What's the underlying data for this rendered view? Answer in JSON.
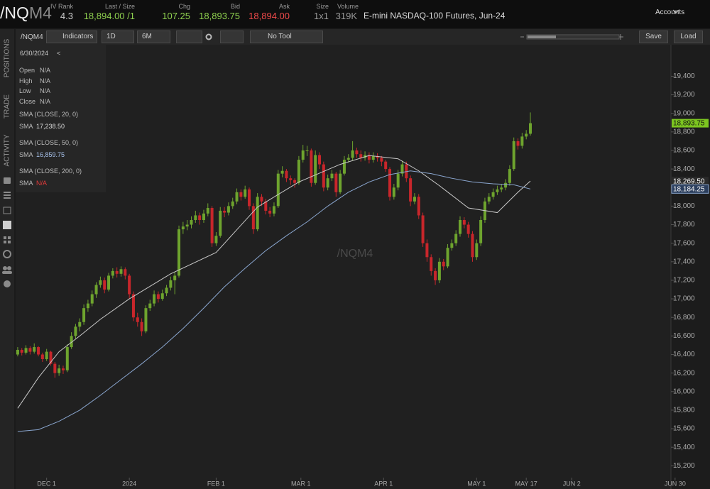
{
  "header": {
    "symbol_root": "/NQ",
    "symbol_month": "M4",
    "fields": [
      {
        "label": "IV Rank",
        "value": "4.3"
      },
      {
        "label": "Last / Size",
        "value": "18,894.00 /1"
      },
      {
        "label": "Chg",
        "value": "107.25"
      },
      {
        "label": "Bid",
        "value": "18,893.75"
      },
      {
        "label": "Ask",
        "value": "18,894.00"
      },
      {
        "label": "Size",
        "value": "1x1"
      },
      {
        "label": "Volume",
        "value": "319K"
      }
    ],
    "description": "E-mini NASDAQ-100 Futures, Jun-24",
    "accounts": "Accounts"
  },
  "toolbar": {
    "symbol": "/NQM4",
    "indicators": "Indicators",
    "interval": "1D",
    "range": "6M",
    "tool": "No Tool",
    "save": "Save",
    "load": "Load"
  },
  "side_tabs": [
    "POSITIONS",
    "TRADE",
    "ACTIVITY"
  ],
  "info_panel": {
    "date": "6/30/2024",
    "collapse": "<",
    "rows": [
      {
        "label": "Open",
        "value": "N/A"
      },
      {
        "label": "High",
        "value": "N/A"
      },
      {
        "label": "Low",
        "value": "N/A"
      },
      {
        "label": "Close",
        "value": "N/A"
      }
    ],
    "studies": [
      {
        "name": "SMA (CLOSE, 20, 0)",
        "label": "SMA",
        "value": "17,238.50"
      },
      {
        "name": "SMA (CLOSE, 50, 0)",
        "label": "SMA",
        "value": "16,859.75"
      },
      {
        "name": "SMA (CLOSE, 200, 0)",
        "label": "SMA",
        "value": "N/A"
      }
    ]
  },
  "chart_data": {
    "type": "candlestick",
    "watermark": "/NQM4",
    "up_color": "#6ea42e",
    "down_color": "#c8262b",
    "xlim": [
      -0.5,
      158
    ],
    "ylim": [
      14950,
      19740
    ],
    "yticks": [
      {
        "value": 15200,
        "label": "15,200"
      },
      {
        "value": 15400,
        "label": "15,400"
      },
      {
        "value": 15600,
        "label": "15,600"
      },
      {
        "value": 15800,
        "label": "15,800"
      },
      {
        "value": 16000,
        "label": "16,000"
      },
      {
        "value": 16200,
        "label": "16,200"
      },
      {
        "value": 16400,
        "label": "16,400"
      },
      {
        "value": 16600,
        "label": "16,600"
      },
      {
        "value": 16800,
        "label": "16,800"
      },
      {
        "value": 17000,
        "label": "17,000"
      },
      {
        "value": 17200,
        "label": "17,200"
      },
      {
        "value": 17400,
        "label": "17,400"
      },
      {
        "value": 17600,
        "label": "17,600"
      },
      {
        "value": 17800,
        "label": "17,800"
      },
      {
        "value": 18000,
        "label": "18,000"
      },
      {
        "value": 18200,
        "label": "18,200"
      },
      {
        "value": 18400,
        "label": "18,400"
      },
      {
        "value": 18600,
        "label": "18,600"
      },
      {
        "value": 18800,
        "label": "18,800"
      },
      {
        "value": 19000,
        "label": "19,000"
      },
      {
        "value": 19200,
        "label": "19,200"
      },
      {
        "value": 19400,
        "label": "19,400"
      }
    ],
    "xticks": [
      {
        "value": 7,
        "label": "DEC 1"
      },
      {
        "value": 27,
        "label": "2024"
      },
      {
        "value": 48,
        "label": "FEB 1"
      },
      {
        "value": 68.5,
        "label": "MAR 1"
      },
      {
        "value": 88.5,
        "label": "APR 1"
      },
      {
        "value": 111,
        "label": "MAY 1"
      },
      {
        "value": 123,
        "label": "MAY 17"
      },
      {
        "value": 134,
        "label": "JUN 2"
      },
      {
        "value": 159,
        "label": "JUN 30"
      }
    ],
    "x": [
      0,
      1,
      2,
      3,
      4,
      5,
      6,
      7,
      8,
      9,
      10,
      11,
      12,
      13,
      14,
      15,
      16,
      17,
      18,
      19,
      20,
      21,
      22,
      23,
      24,
      25,
      26,
      27,
      28,
      29,
      30,
      31,
      32,
      33,
      34,
      35,
      36,
      37,
      38,
      39,
      40,
      41,
      42,
      43,
      44,
      45,
      46,
      47,
      48,
      49,
      50,
      51,
      52,
      53,
      54,
      55,
      56,
      57,
      58,
      59,
      60,
      61,
      62,
      63,
      64,
      65,
      66,
      67,
      68,
      69,
      70,
      71,
      72,
      73,
      74,
      75,
      76,
      77,
      78,
      79,
      80,
      81,
      82,
      83,
      84,
      85,
      86,
      87,
      88,
      89,
      90,
      91,
      92,
      93,
      94,
      95,
      96,
      97,
      98,
      99,
      100,
      101,
      102,
      103,
      104,
      105,
      106,
      107,
      108,
      109,
      110,
      111,
      112,
      113,
      114,
      115,
      116,
      117,
      118,
      119,
      120,
      121,
      122,
      123,
      124
    ],
    "candles": [
      [
        16400,
        16480,
        16380,
        16450
      ],
      [
        16450,
        16470,
        16390,
        16420
      ],
      [
        16420,
        16500,
        16400,
        16470
      ],
      [
        16470,
        16490,
        16400,
        16430
      ],
      [
        16430,
        16520,
        16410,
        16480
      ],
      [
        16480,
        16490,
        16380,
        16400
      ],
      [
        16400,
        16420,
        16320,
        16350
      ],
      [
        16350,
        16460,
        16330,
        16430
      ],
      [
        16430,
        16440,
        16280,
        16300
      ],
      [
        16300,
        16320,
        16150,
        16200
      ],
      [
        16200,
        16290,
        16170,
        16250
      ],
      [
        16250,
        16280,
        16190,
        16230
      ],
      [
        16230,
        16510,
        16210,
        16480
      ],
      [
        16480,
        16640,
        16460,
        16600
      ],
      [
        16600,
        16730,
        16570,
        16700
      ],
      [
        16700,
        16790,
        16650,
        16750
      ],
      [
        16750,
        16940,
        16720,
        16900
      ],
      [
        16900,
        16990,
        16860,
        16950
      ],
      [
        16950,
        17090,
        16920,
        17050
      ],
      [
        17050,
        17180,
        17010,
        17150
      ],
      [
        17150,
        17240,
        17120,
        17200
      ],
      [
        17200,
        17230,
        17060,
        17100
      ],
      [
        17100,
        17280,
        17080,
        17250
      ],
      [
        17250,
        17330,
        17220,
        17300
      ],
      [
        17300,
        17340,
        17230,
        17270
      ],
      [
        17270,
        17350,
        17240,
        17320
      ],
      [
        17320,
        17340,
        17210,
        17250
      ],
      [
        17250,
        17270,
        17000,
        17050
      ],
      [
        17050,
        17080,
        16760,
        16800
      ],
      [
        16800,
        16850,
        16700,
        16750
      ],
      [
        16750,
        16790,
        16600,
        16650
      ],
      [
        16650,
        16930,
        16630,
        16900
      ],
      [
        16900,
        16990,
        16870,
        16950
      ],
      [
        16950,
        17090,
        16920,
        17050
      ],
      [
        17050,
        17080,
        16960,
        17000
      ],
      [
        17000,
        17100,
        16980,
        17060
      ],
      [
        17060,
        17150,
        17030,
        17120
      ],
      [
        17120,
        17240,
        17090,
        17200
      ],
      [
        17200,
        17290,
        17050,
        17250
      ],
      [
        17250,
        17790,
        17230,
        17750
      ],
      [
        17750,
        17830,
        17700,
        17780
      ],
      [
        17780,
        17850,
        17740,
        17800
      ],
      [
        17800,
        17890,
        17760,
        17850
      ],
      [
        17850,
        17950,
        17820,
        17900
      ],
      [
        17900,
        17930,
        17800,
        17850
      ],
      [
        17850,
        17960,
        17820,
        17920
      ],
      [
        17920,
        18030,
        17890,
        17980
      ],
      [
        17980,
        18000,
        17560,
        17600
      ],
      [
        17600,
        17720,
        17570,
        17680
      ],
      [
        17680,
        17990,
        17660,
        17950
      ],
      [
        17950,
        17990,
        17880,
        17930
      ],
      [
        17930,
        18040,
        17900,
        18000
      ],
      [
        18000,
        18090,
        17970,
        18050
      ],
      [
        18050,
        18190,
        18020,
        18150
      ],
      [
        18150,
        18180,
        18060,
        18100
      ],
      [
        18100,
        18220,
        18080,
        18180
      ],
      [
        18180,
        18200,
        17960,
        18000
      ],
      [
        18000,
        18030,
        17700,
        17750
      ],
      [
        17750,
        18140,
        17730,
        18100
      ],
      [
        18100,
        18130,
        18000,
        18050
      ],
      [
        18050,
        18080,
        17910,
        17950
      ],
      [
        17950,
        17990,
        17880,
        17920
      ],
      [
        17920,
        18040,
        17890,
        18000
      ],
      [
        18000,
        18390,
        17980,
        18350
      ],
      [
        18350,
        18430,
        18310,
        18380
      ],
      [
        18380,
        18400,
        18260,
        18300
      ],
      [
        18300,
        18330,
        18230,
        18280
      ],
      [
        18280,
        18300,
        18200,
        18250
      ],
      [
        18250,
        18540,
        18230,
        18500
      ],
      [
        18500,
        18660,
        18470,
        18600
      ],
      [
        18600,
        18650,
        18540,
        18600
      ],
      [
        18600,
        18620,
        18210,
        18250
      ],
      [
        18250,
        18600,
        18230,
        18550
      ],
      [
        18550,
        18580,
        18400,
        18450
      ],
      [
        18450,
        18480,
        18160,
        18200
      ],
      [
        18200,
        18340,
        18170,
        18300
      ],
      [
        18300,
        18390,
        18270,
        18350
      ],
      [
        18350,
        18370,
        18100,
        18150
      ],
      [
        18150,
        18390,
        18130,
        18350
      ],
      [
        18350,
        18540,
        18330,
        18500
      ],
      [
        18500,
        18560,
        18470,
        18520
      ],
      [
        18520,
        18700,
        18490,
        18600
      ],
      [
        18600,
        18630,
        18520,
        18560
      ],
      [
        18560,
        18600,
        18480,
        18520
      ],
      [
        18520,
        18590,
        18490,
        18550
      ],
      [
        18550,
        18580,
        18460,
        18500
      ],
      [
        18500,
        18580,
        18470,
        18540
      ],
      [
        18540,
        18570,
        18480,
        18520
      ],
      [
        18520,
        18540,
        18430,
        18480
      ],
      [
        18480,
        18500,
        18370,
        18400
      ],
      [
        18400,
        18420,
        18060,
        18100
      ],
      [
        18100,
        18240,
        18070,
        18200
      ],
      [
        18200,
        18390,
        18170,
        18350
      ],
      [
        18350,
        18490,
        18320,
        18450
      ],
      [
        18450,
        18480,
        18260,
        18300
      ],
      [
        18300,
        18330,
        18000,
        18050
      ],
      [
        18050,
        18140,
        18020,
        18100
      ],
      [
        18100,
        18130,
        17860,
        17900
      ],
      [
        17900,
        17930,
        17560,
        17600
      ],
      [
        17600,
        17640,
        17400,
        17450
      ],
      [
        17450,
        17480,
        17250,
        17300
      ],
      [
        17300,
        17330,
        17150,
        17200
      ],
      [
        17200,
        17440,
        17170,
        17400
      ],
      [
        17400,
        17430,
        17310,
        17350
      ],
      [
        17350,
        17590,
        17330,
        17550
      ],
      [
        17550,
        17640,
        17520,
        17600
      ],
      [
        17600,
        17740,
        17570,
        17700
      ],
      [
        17700,
        17890,
        17670,
        17850
      ],
      [
        17850,
        17880,
        17760,
        17800
      ],
      [
        17800,
        17830,
        17660,
        17700
      ],
      [
        17700,
        17730,
        17400,
        17450
      ],
      [
        17450,
        17640,
        17420,
        17600
      ],
      [
        17600,
        17890,
        17570,
        17850
      ],
      [
        17850,
        18090,
        17820,
        18050
      ],
      [
        18050,
        18140,
        18020,
        18100
      ],
      [
        18100,
        18190,
        18070,
        18150
      ],
      [
        18150,
        18220,
        18120,
        18180
      ],
      [
        18180,
        18240,
        18150,
        18200
      ],
      [
        18200,
        18290,
        18170,
        18250
      ],
      [
        18250,
        18440,
        18220,
        18400
      ],
      [
        18400,
        18740,
        18380,
        18700
      ],
      [
        18700,
        18730,
        18610,
        18650
      ],
      [
        18650,
        18790,
        18620,
        18750
      ],
      [
        18750,
        18820,
        18720,
        18780
      ],
      [
        18780,
        19010,
        18760,
        18894
      ]
    ],
    "series": [
      {
        "color": "#c9c9c9",
        "x": [
          0,
          5,
          10,
          15,
          20,
          27,
          37,
          48,
          58,
          68,
          78,
          85,
          92,
          97,
          102,
          109,
          116,
          121,
          124
        ],
        "values": [
          15820,
          16150,
          16430,
          16600,
          16780,
          17000,
          17270,
          17500,
          17990,
          18260,
          18450,
          18545,
          18510,
          18380,
          18220,
          17980,
          17930,
          18150,
          18269.5
        ]
      },
      {
        "color": "#8aa6cf",
        "x": [
          0,
          5,
          10,
          15,
          20,
          25,
          30,
          35,
          40,
          45,
          50,
          55,
          60,
          65,
          70,
          75,
          80,
          85,
          90,
          95,
          100,
          105,
          110,
          115,
          120,
          124
        ],
        "values": [
          15570,
          15590,
          15680,
          15800,
          15960,
          16130,
          16300,
          16480,
          16680,
          16900,
          17130,
          17330,
          17520,
          17680,
          17830,
          18000,
          18150,
          18260,
          18340,
          18380,
          18350,
          18300,
          18260,
          18240,
          18230,
          18184.25
        ]
      }
    ],
    "price_tags": [
      {
        "value": 18893.75,
        "label": "18,893.75",
        "color": "#7cc520"
      },
      {
        "value": 18269.5,
        "label": "18,269.50",
        "color": "#2a2a2a"
      },
      {
        "value": 18184.25,
        "label": "18,184.25",
        "color": "#2c3f5e"
      }
    ]
  }
}
